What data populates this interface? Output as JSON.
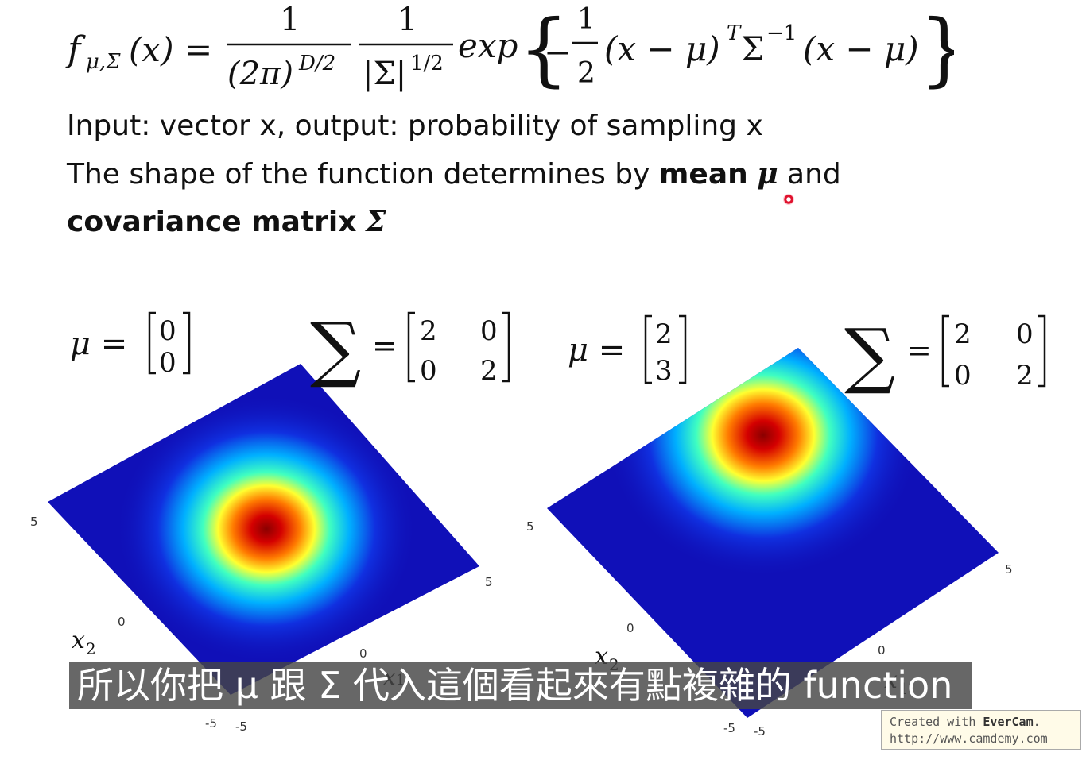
{
  "formula": {
    "lhs": "f",
    "lhs_sub": "μ,Σ",
    "lhs_arg": "(x)",
    "equals": "=",
    "frac1_num": "1",
    "frac1_den_base": "(2π)",
    "frac1_den_exp": "D/2",
    "frac2_num": "1",
    "frac2_den_base": "|Σ|",
    "frac2_den_exp": "1/2",
    "exp_word": "exp",
    "minus": "−",
    "half_num": "1",
    "half_den": "2",
    "quad_a": "(x − μ)",
    "quad_T": "T",
    "quad_sigma": "Σ",
    "quad_inv": "−1",
    "quad_b": "(x − μ)"
  },
  "text": {
    "line1": "Input: vector x, output: probability of sampling x",
    "line2_pre": "The shape of the function determines by ",
    "line2_bold": "mean",
    "line2_mu": "μ",
    "line2_post": " and",
    "line3_bold": "covariance matrix",
    "line3_sigma": "Σ"
  },
  "plots": [
    {
      "mu_label": "μ =",
      "mu": [
        "0",
        "0"
      ],
      "sigma_symbol": "∑",
      "sigma_eq": "=",
      "sigma": [
        [
          "2",
          "0"
        ],
        [
          "0",
          "2"
        ]
      ],
      "x2_label": "x",
      "x2_sub": "2",
      "x1_label": "x",
      "x1_sub": "1",
      "ticks_x2": [
        "5",
        "0",
        "-5"
      ],
      "ticks_x1": [
        "5",
        "0",
        "-5"
      ]
    },
    {
      "mu_label": "μ =",
      "mu": [
        "2",
        "3"
      ],
      "sigma_symbol": "∑",
      "sigma_eq": "=",
      "sigma": [
        [
          "2",
          "0"
        ],
        [
          "0",
          "2"
        ]
      ],
      "x2_label": "x",
      "x2_sub": "2",
      "x1_label": "x",
      "x1_sub": "1",
      "ticks_x2": [
        "5",
        "0",
        "-5"
      ],
      "ticks_x1": [
        "5",
        "0",
        "-5"
      ]
    }
  ],
  "subtitle": "所以你把 μ 跟 Σ 代入這個看起來有點複雜的 function",
  "watermark": {
    "line1_pre": "Created with ",
    "line1_brand": "EverCam",
    "line1_post": ".",
    "line2": "http://www.camdemy.com"
  },
  "colors": {
    "plot_base": "#1010b8",
    "plot_peak": "#8a0000",
    "subtitle_bg": "#464646"
  }
}
